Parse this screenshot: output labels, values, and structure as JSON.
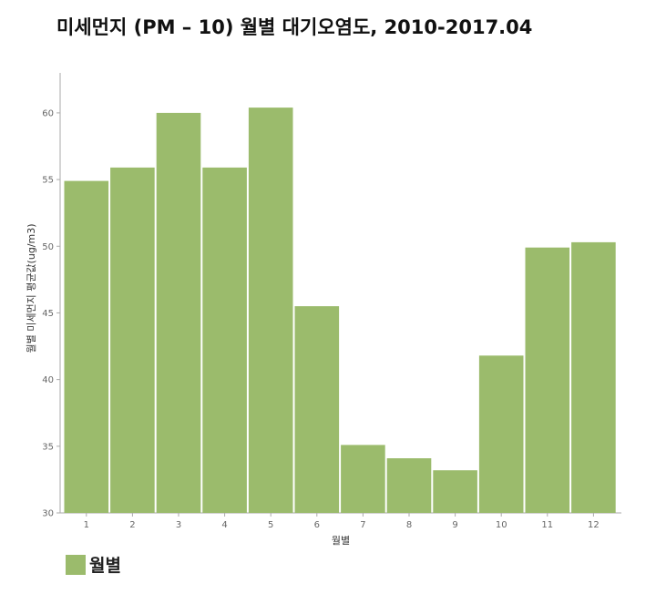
{
  "page": {
    "title": "미세먼지 (PM – 10) 월별 대기오염도, 2010-2017.04"
  },
  "legend": {
    "items": [
      {
        "label": "월별",
        "color": "#9bbb6c"
      }
    ]
  },
  "chart_data": {
    "type": "bar",
    "title": "미세먼지 (PM – 10) 월별 대기오염도, 2010-2017.04",
    "xlabel": "월별",
    "ylabel": "월별 미세먼지 평균값(ug/m3)",
    "categories": [
      "1",
      "2",
      "3",
      "4",
      "5",
      "6",
      "7",
      "8",
      "9",
      "10",
      "11",
      "12"
    ],
    "series": [
      {
        "name": "월별",
        "color": "#9bbb6c",
        "values": [
          54.9,
          55.9,
          60.0,
          55.9,
          60.4,
          45.5,
          35.1,
          34.1,
          33.2,
          41.8,
          49.9,
          50.3
        ]
      }
    ],
    "ylim": [
      30,
      63
    ],
    "yticks": [
      30,
      35,
      40,
      45,
      50,
      55,
      60
    ],
    "grid": false,
    "legend_position": "bottom-left"
  }
}
